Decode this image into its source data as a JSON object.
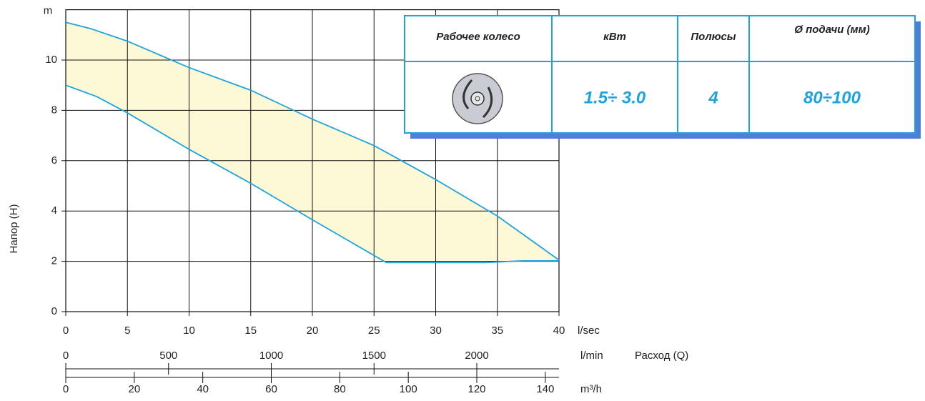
{
  "chart_data": {
    "type": "range",
    "y_unit": "m",
    "y_label": "Напор (H)",
    "x_label": "Расход (Q)",
    "x_unit": "l/sec",
    "xlim": [
      0,
      40
    ],
    "xticks": [
      0,
      5,
      10,
      15,
      20,
      25,
      30,
      35,
      40
    ],
    "ylim": [
      0,
      12
    ],
    "yticks": [
      0,
      2,
      4,
      6,
      8,
      10
    ],
    "grid": true,
    "fill": "#fdf8d6",
    "series": [
      {
        "name": null,
        "color": "#1fa3dc",
        "x": [
          0,
          2,
          5,
          10,
          15,
          20,
          25,
          30,
          35,
          40
        ],
        "values": [
          11.5,
          11.25,
          10.75,
          9.7,
          8.8,
          7.65,
          6.6,
          5.25,
          3.8,
          2.05
        ]
      },
      {
        "name": null,
        "color": "#1fa3dc",
        "x": [
          0,
          2.5,
          5,
          10,
          15,
          20,
          26,
          30,
          34,
          37,
          40
        ],
        "values": [
          9,
          8.55,
          7.9,
          6.45,
          5.1,
          3.65,
          1.95,
          1.95,
          1.95,
          2.02,
          2.02
        ]
      }
    ],
    "extra_axes": [
      {
        "unit": "l/min",
        "lim": [
          0,
          2400
        ],
        "ticks": [
          0,
          500,
          1000,
          1500,
          2000
        ]
      },
      {
        "unit": "m³/h",
        "lim": [
          0,
          144
        ],
        "ticks": [
          0,
          20,
          40,
          60,
          80,
          100,
          120,
          140
        ]
      }
    ]
  },
  "table": {
    "header": [
      "Рабочее колесо",
      "кВт",
      "Полюсы",
      "Ø подачи (мм)"
    ],
    "row": [
      "1.5÷ 3.0",
      "4",
      "80÷100"
    ]
  }
}
